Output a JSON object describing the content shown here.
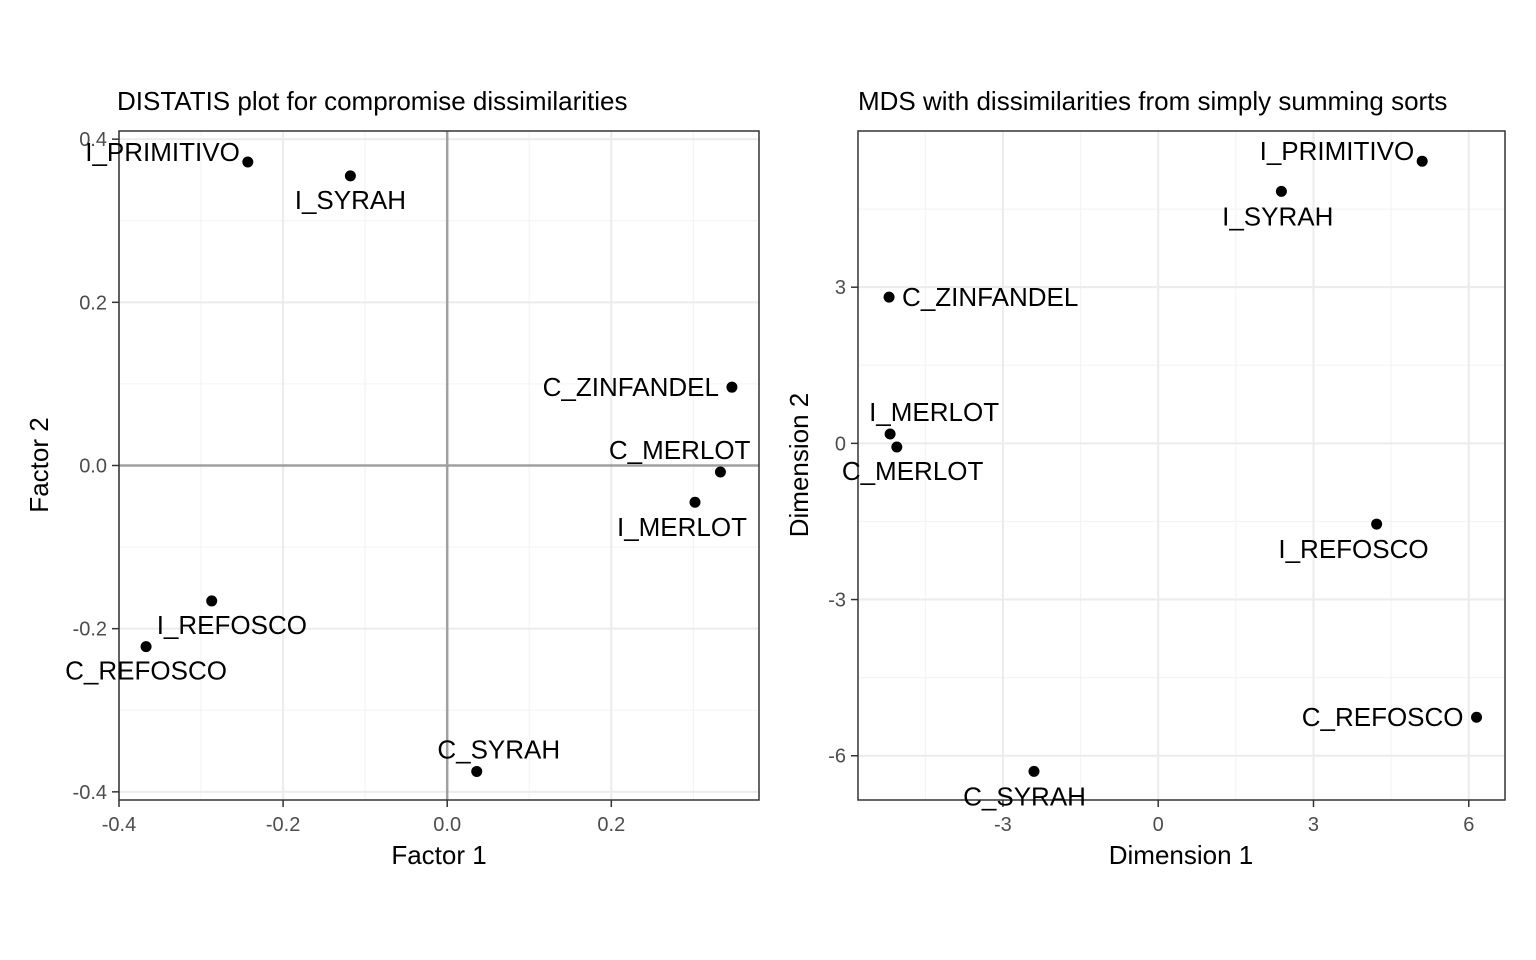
{
  "chart_data": [
    {
      "type": "scatter",
      "title": "DISTATIS plot for compromise dissimilarities",
      "xlabel": "Factor 1",
      "ylabel": "Factor 2",
      "xlim": [
        -0.4,
        0.38
      ],
      "ylim": [
        -0.41,
        0.41
      ],
      "xticks": [
        -0.4,
        -0.2,
        0.0,
        0.2
      ],
      "xtick_labels": [
        "-0.4",
        "-0.2",
        "0.0",
        "0.2"
      ],
      "yticks": [
        -0.4,
        -0.2,
        0.0,
        0.2,
        0.4
      ],
      "ytick_labels": [
        "-0.4",
        "-0.2",
        "0.0",
        "0.2",
        "0.4"
      ],
      "grid": true,
      "reference_lines": {
        "x": 0,
        "y": 0
      },
      "points": [
        {
          "label": "I_PRIMITIVO",
          "x": -0.243,
          "y": 0.372,
          "label_pos": "left-top"
        },
        {
          "label": "I_SYRAH",
          "x": -0.118,
          "y": 0.355,
          "label_pos": "below"
        },
        {
          "label": "C_ZINFANDEL",
          "x": 0.347,
          "y": 0.096,
          "label_pos": "left"
        },
        {
          "label": "C_MERLOT",
          "x": 0.333,
          "y": -0.008,
          "label_pos": "above-left"
        },
        {
          "label": "I_MERLOT",
          "x": 0.302,
          "y": -0.045,
          "label_pos": "below-left"
        },
        {
          "label": "I_REFOSCO",
          "x": -0.287,
          "y": -0.166,
          "label_pos": "below-right"
        },
        {
          "label": "C_REFOSCO",
          "x": -0.367,
          "y": -0.222,
          "label_pos": "below"
        },
        {
          "label": "C_SYRAH",
          "x": 0.036,
          "y": -0.375,
          "label_pos": "above"
        }
      ]
    },
    {
      "type": "scatter",
      "title": "MDS with dissimilarities from simply summing sorts",
      "xlabel": "Dimension 1",
      "ylabel": "Dimension 2",
      "xlim": [
        -5.8,
        6.7
      ],
      "ylim": [
        -6.85,
        6.0
      ],
      "xticks": [
        -3,
        0,
        3,
        6
      ],
      "xtick_labels": [
        "-3",
        "0",
        "3",
        "6"
      ],
      "yticks": [
        -6,
        -3,
        0,
        3
      ],
      "ytick_labels": [
        "-6",
        "-3",
        "0",
        "3"
      ],
      "grid": true,
      "points": [
        {
          "label": "I_PRIMITIVO",
          "x": 5.1,
          "y": 5.42,
          "label_pos": "left-top"
        },
        {
          "label": "I_SYRAH",
          "x": 2.38,
          "y": 4.84,
          "label_pos": "below-left"
        },
        {
          "label": "C_ZINFANDEL",
          "x": -5.2,
          "y": 2.81,
          "label_pos": "right"
        },
        {
          "label": "I_MERLOT",
          "x": -5.18,
          "y": 0.18,
          "label_pos": "above-right"
        },
        {
          "label": "C_MERLOT",
          "x": -5.05,
          "y": -0.07,
          "label_pos": "below-right"
        },
        {
          "label": "I_REFOSCO",
          "x": 4.22,
          "y": -1.55,
          "label_pos": "below-left"
        },
        {
          "label": "C_REFOSCO",
          "x": 6.15,
          "y": -5.26,
          "label_pos": "left"
        },
        {
          "label": "C_SYRAH",
          "x": -2.4,
          "y": -6.3,
          "label_pos": "below-left"
        }
      ]
    }
  ]
}
